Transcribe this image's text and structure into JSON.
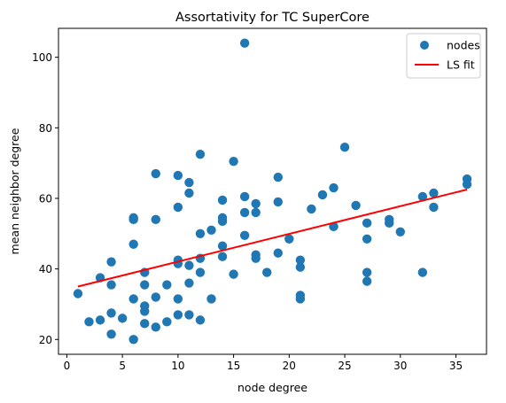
{
  "chart_data": {
    "type": "scatter",
    "title": "Assortativity for TC SuperCore",
    "xlabel": "node degree",
    "ylabel": "mean neighbor degree",
    "xlim": [
      -0.75,
      37.75
    ],
    "ylim": [
      15.8,
      108.2
    ],
    "xticks": [
      0,
      5,
      10,
      15,
      20,
      25,
      30,
      35
    ],
    "yticks": [
      20,
      40,
      60,
      80,
      100
    ],
    "grid": false,
    "legend_position": "top-right",
    "legend": {
      "nodes_label": "nodes",
      "fit_label": "LS fit"
    },
    "colors": {
      "points": "#1f77b4",
      "fit": "#ff0000"
    },
    "series": [
      {
        "name": "nodes",
        "points": [
          [
            1,
            33
          ],
          [
            2,
            25
          ],
          [
            3,
            37.5
          ],
          [
            3,
            25.5
          ],
          [
            4,
            42
          ],
          [
            4,
            35.5
          ],
          [
            4,
            27.5
          ],
          [
            4,
            21.5
          ],
          [
            5,
            26
          ],
          [
            6,
            54.5
          ],
          [
            6,
            54
          ],
          [
            6,
            47
          ],
          [
            6,
            31.5
          ],
          [
            6,
            20
          ],
          [
            7,
            39
          ],
          [
            7,
            35.5
          ],
          [
            7,
            29.5
          ],
          [
            7,
            28
          ],
          [
            7,
            24.5
          ],
          [
            8,
            67
          ],
          [
            8,
            54
          ],
          [
            8,
            32
          ],
          [
            8,
            23.5
          ],
          [
            9,
            35.5
          ],
          [
            9,
            25
          ],
          [
            10,
            66.5
          ],
          [
            10,
            57.5
          ],
          [
            10,
            42.5
          ],
          [
            10,
            41.5
          ],
          [
            10,
            31.5
          ],
          [
            10,
            27
          ],
          [
            11,
            64.5
          ],
          [
            11,
            61.5
          ],
          [
            11,
            41
          ],
          [
            11,
            36
          ],
          [
            11,
            27
          ],
          [
            12,
            72.5
          ],
          [
            12,
            50
          ],
          [
            12,
            43
          ],
          [
            12,
            39
          ],
          [
            12,
            25.5
          ],
          [
            13,
            51
          ],
          [
            13,
            31.5
          ],
          [
            14,
            59.5
          ],
          [
            14,
            54.5
          ],
          [
            14,
            53.5
          ],
          [
            14,
            46.5
          ],
          [
            14,
            43.5
          ],
          [
            15,
            70.5
          ],
          [
            15,
            38.5
          ],
          [
            16,
            104
          ],
          [
            16,
            60.5
          ],
          [
            16,
            56
          ],
          [
            16,
            49.5
          ],
          [
            17,
            58.5
          ],
          [
            17,
            56
          ],
          [
            17,
            44
          ],
          [
            17,
            43
          ],
          [
            18,
            39
          ],
          [
            19,
            66
          ],
          [
            19,
            59
          ],
          [
            19,
            44.5
          ],
          [
            20,
            48.5
          ],
          [
            21,
            42.5
          ],
          [
            21,
            40.5
          ],
          [
            21,
            32.5
          ],
          [
            21,
            31.5
          ],
          [
            22,
            57
          ],
          [
            23,
            61
          ],
          [
            24,
            63
          ],
          [
            24,
            52
          ],
          [
            25,
            74.5
          ],
          [
            26,
            58
          ],
          [
            27,
            53
          ],
          [
            27,
            48.5
          ],
          [
            27,
            39
          ],
          [
            27,
            36.5
          ],
          [
            29,
            54
          ],
          [
            29,
            53
          ],
          [
            30,
            50.5
          ],
          [
            32,
            60.5
          ],
          [
            32,
            39
          ],
          [
            33,
            61.5
          ],
          [
            33,
            57.5
          ],
          [
            36,
            65.5
          ],
          [
            36,
            64
          ]
        ]
      },
      {
        "name": "LS fit",
        "line": [
          [
            1,
            35
          ],
          [
            36,
            62.5
          ]
        ]
      }
    ]
  }
}
